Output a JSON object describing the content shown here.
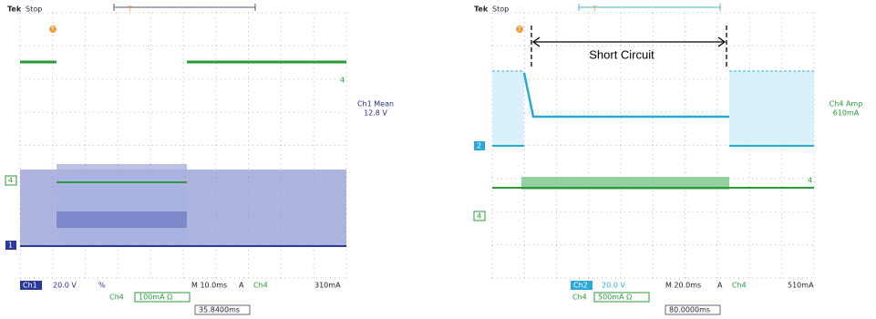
{
  "left_scope": {
    "brand": "Tek",
    "status": "Stop",
    "trigger_marker": "T",
    "ch1_marker": "1",
    "ch4_marker": "4",
    "ch4_right_marker": "4",
    "readout_label": "Ch1 Mean",
    "readout_value": "12.8 V",
    "ch1_badge": "Ch1",
    "ch1_scale": "20.0 V",
    "ch1_coupling": "%",
    "timebase": "M 10.0ms",
    "trigger_mode": "A",
    "trigger_source": "Ch4",
    "trigger_level": "310mA",
    "ch4_label": "Ch4",
    "ch4_scale": "100mA Ω",
    "cursor_time": "35.8400ms"
  },
  "right_scope": {
    "brand": "Tek",
    "status": "Stop",
    "trigger_marker": "T",
    "ch2_marker": "2",
    "ch4_marker": "4",
    "ch4_right_marker": "4",
    "annotation": "Short Circuit",
    "readout_label": "Ch4 Amp",
    "readout_value": "610mA",
    "ch2_badge": "Ch2",
    "ch2_scale": "20.0 V",
    "timebase": "M 20.0ms",
    "trigger_mode": "A",
    "trigger_source": "Ch4",
    "trigger_level": "510mA",
    "ch4_label": "Ch4",
    "ch4_scale": "500mA Ω",
    "cursor_time": "80.0000ms"
  }
}
